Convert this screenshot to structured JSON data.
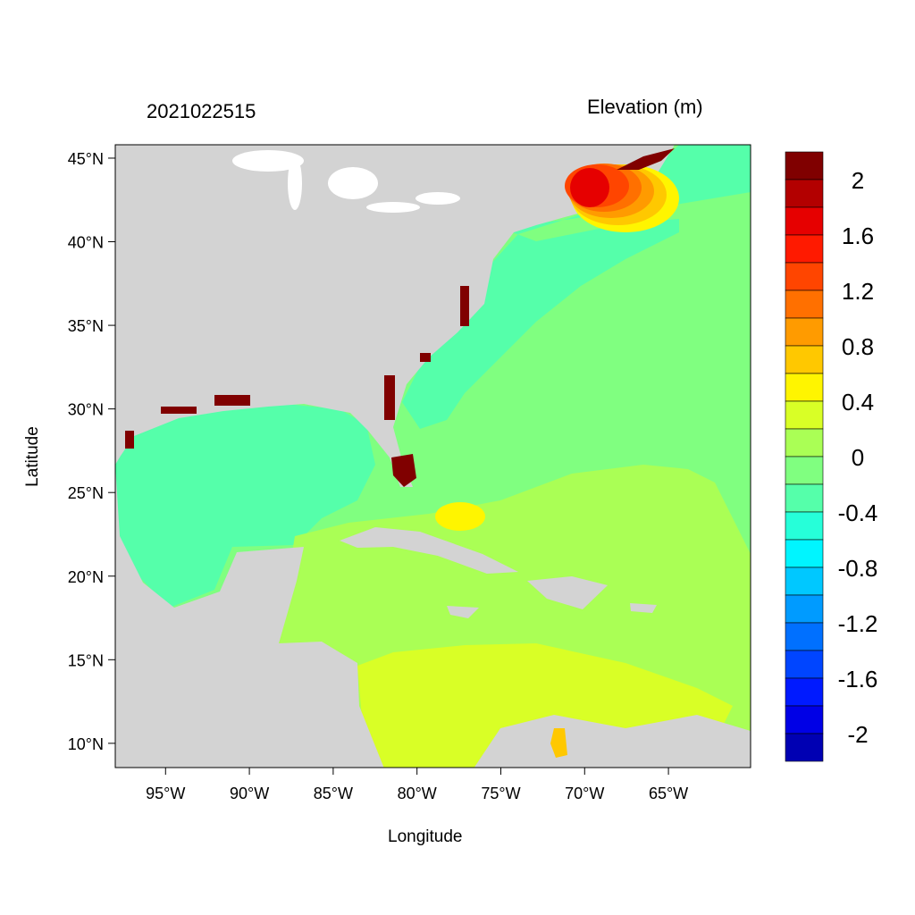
{
  "header": {
    "timestamp": "2021022515",
    "variable": "Elevation (m)"
  },
  "axes": {
    "xlabel": "Longitude",
    "ylabel": "Latitude",
    "lon_ticks": [
      {
        "value": -95,
        "label": "95°W"
      },
      {
        "value": -90,
        "label": "90°W"
      },
      {
        "value": -85,
        "label": "85°W"
      },
      {
        "value": -80,
        "label": "80°W"
      },
      {
        "value": -75,
        "label": "75°W"
      },
      {
        "value": -70,
        "label": "70°W"
      },
      {
        "value": -65,
        "label": "65°W"
      }
    ],
    "lat_ticks": [
      {
        "value": 45,
        "label": "45°N"
      },
      {
        "value": 40,
        "label": "40°N"
      },
      {
        "value": 35,
        "label": "35°N"
      },
      {
        "value": 30,
        "label": "30°N"
      },
      {
        "value": 25,
        "label": "25°N"
      },
      {
        "value": 20,
        "label": "20°N"
      },
      {
        "value": 15,
        "label": "15°N"
      },
      {
        "value": 10,
        "label": "10°N"
      }
    ],
    "lon_range": [
      -98.0,
      -60.1
    ],
    "lat_range": [
      8.55,
      45.8
    ]
  },
  "colorbar": {
    "colors": [
      "#800000",
      "#B30000",
      "#E60000",
      "#FF1A00",
      "#FF4500",
      "#FF7000",
      "#FF9B00",
      "#FFC800",
      "#FFF500",
      "#D9FF26",
      "#AAFF55",
      "#80FF80",
      "#55FFAA",
      "#26FFD9",
      "#00F5FF",
      "#00C8FF",
      "#009BFF",
      "#0070FF",
      "#0045FF",
      "#001AFF",
      "#0000E6",
      "#0000B3"
    ],
    "labels": [
      "2",
      "1.6",
      "1.2",
      "0.8",
      "0.4",
      "0",
      "-0.4",
      "-0.8",
      "-1.2",
      "-1.6",
      "-2"
    ]
  },
  "colors": {
    "land": "#D3D3D3",
    "atlantic": "#80FF80",
    "gulf": "#55FFAA",
    "caribbean": "#AAFF55",
    "south_caribbean": "#D9FF26"
  }
}
